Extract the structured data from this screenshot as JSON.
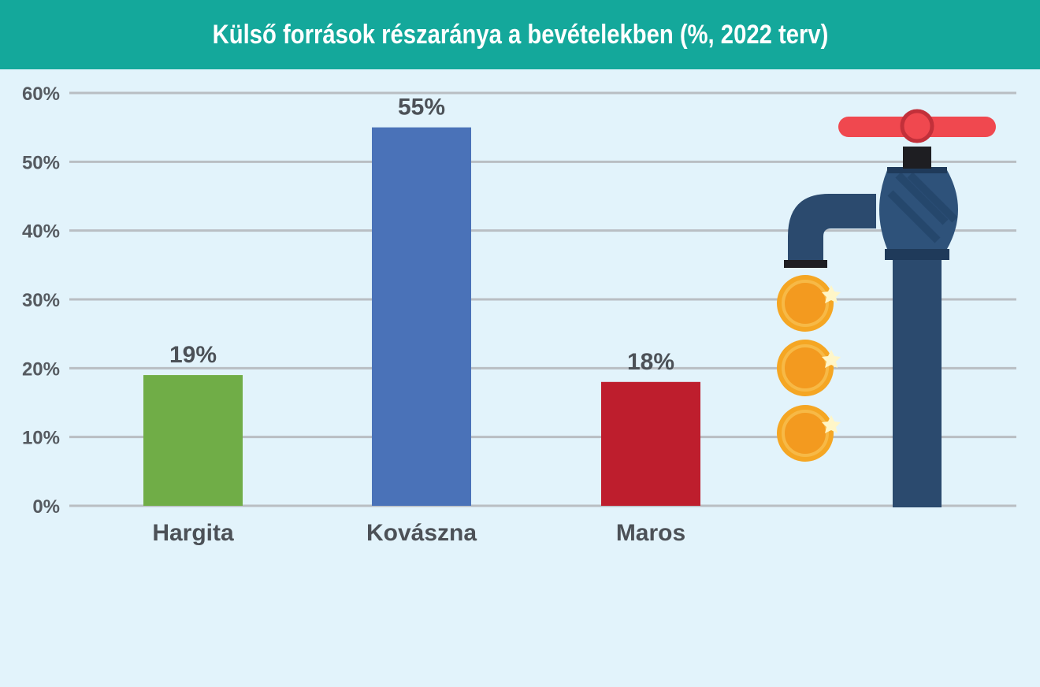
{
  "chart_data": {
    "type": "bar",
    "title": "Külső források részaránya a bevételekben (%, 2022 terv)",
    "categories": [
      "Hargita",
      "Kovászna",
      "Maros"
    ],
    "values": [
      19,
      55,
      18
    ],
    "data_labels": [
      "19%",
      "55%",
      "18%"
    ],
    "bar_colors": [
      "#70ad47",
      "#4a72b8",
      "#be1e2d"
    ],
    "ylim": [
      0,
      60
    ],
    "yticks": [
      0,
      10,
      20,
      30,
      40,
      50,
      60
    ],
    "ytick_labels": [
      "0%",
      "10%",
      "20%",
      "30%",
      "40%",
      "50%",
      "60%"
    ],
    "grid": true,
    "xlabel": "",
    "ylabel": ""
  },
  "decoration": {
    "icon": "faucet-with-coins-icon",
    "colors": {
      "handle": "#f0484f",
      "faucet": "#2b4a6e",
      "coin": "#f5a623"
    }
  },
  "colors": {
    "header": "#14a89b",
    "background": "#e2f3fb",
    "gridline": "#b9bec3"
  }
}
